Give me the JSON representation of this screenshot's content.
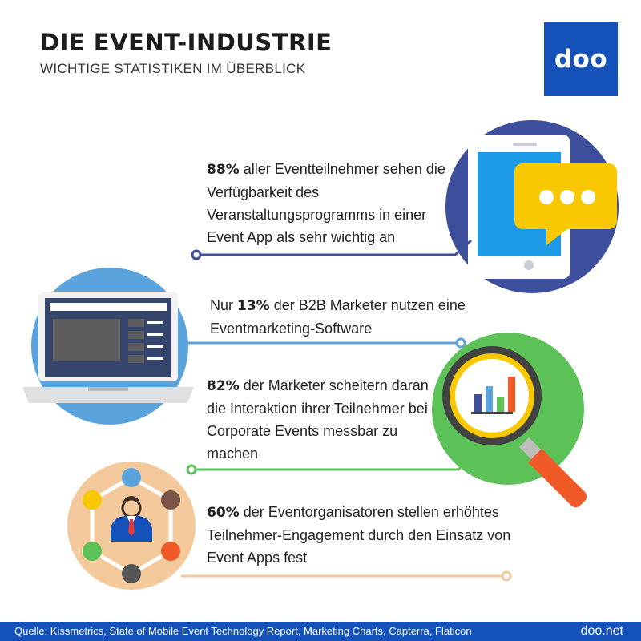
{
  "header": {
    "title": "DIE EVENT-INDUSTRIE",
    "subtitle": "WICHTIGE STATISTIKEN IM ÜBERBLICK",
    "logo": "doo"
  },
  "stats": [
    {
      "value": "88%",
      "text": " aller Eventteilnehmer sehen die Verfügbarkeit des Veranstaltungsprogramms in einer Event App als sehr wichtig an",
      "icon": "smartphone-chat-icon",
      "color": "#3d4f9c"
    },
    {
      "prefix": "Nur ",
      "value": "13%",
      "text": " der B2B Marketer nutzen eine Eventmarketing-Software",
      "icon": "laptop-icon",
      "color": "#5ba3dc"
    },
    {
      "value": "82%",
      "text": " der Marketer scheitern daran die Interaktion ihrer Teilnehmer bei Corporate Events messbar zu machen",
      "icon": "magnifier-chart-icon",
      "color": "#5cc157"
    },
    {
      "value": "60%",
      "text": " der Eventorganisatoren stellen erhöhtes Teilnehmer-Engagement durch den Einsatz von Event Apps fest",
      "icon": "network-person-icon",
      "color": "#f3c89a"
    }
  ],
  "footer": {
    "source": "Quelle: Kissmetrics, State of Mobile Event Technology Report, Marketing Charts, Capterra, Flaticon",
    "site": "doo.net"
  }
}
